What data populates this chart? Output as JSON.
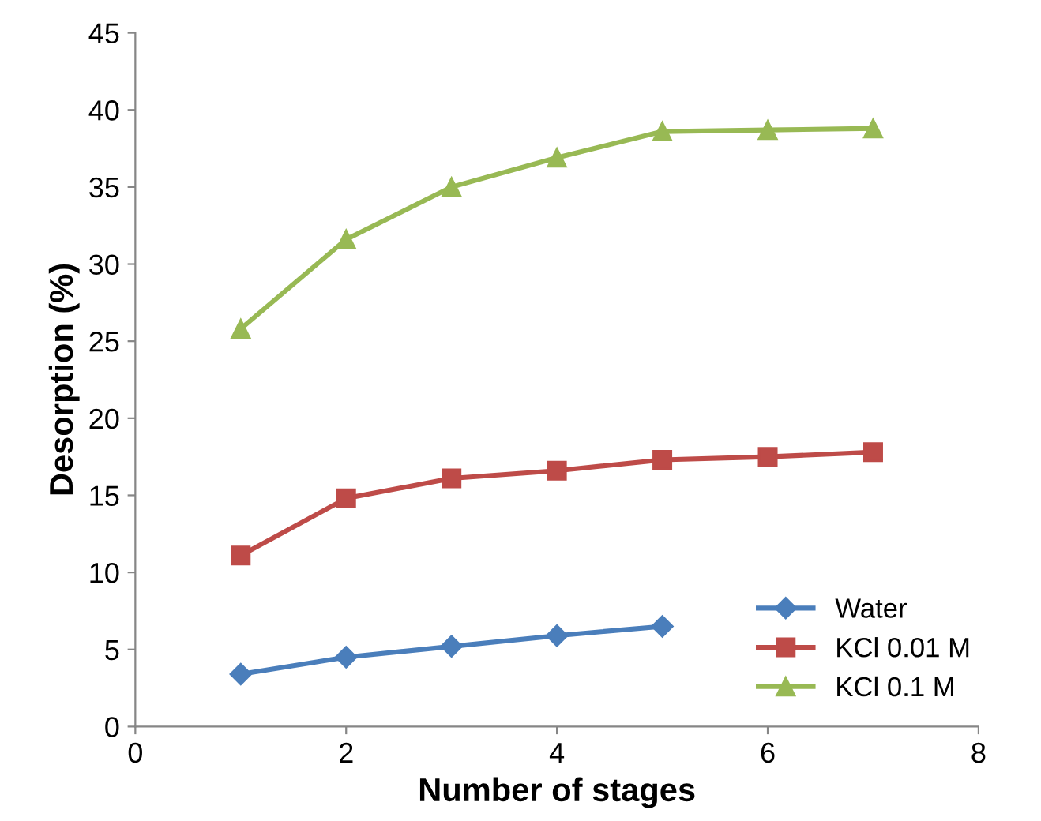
{
  "chart_data": {
    "type": "line",
    "xlabel": "Number of stages",
    "ylabel": "Desorption (%)",
    "xlim": [
      0,
      8
    ],
    "xticks": [
      0,
      2,
      4,
      6,
      8
    ],
    "ylim": [
      0,
      45
    ],
    "yticks": [
      0,
      5,
      10,
      15,
      20,
      25,
      30,
      35,
      40,
      45
    ],
    "grid": false,
    "legend": "bottom right",
    "line_style": "solid",
    "series": [
      {
        "name": "Water",
        "color": "#4a7ebb",
        "marker": "diamond",
        "x": [
          1,
          2,
          3,
          4,
          5
        ],
        "values": [
          3.4,
          4.5,
          5.2,
          5.9,
          6.5
        ]
      },
      {
        "name": "KCl 0.01 M",
        "color": "#be4b48",
        "marker": "square",
        "x": [
          1,
          2,
          3,
          4,
          5,
          6,
          7
        ],
        "values": [
          11.1,
          14.8,
          16.1,
          16.6,
          17.3,
          17.5,
          17.8
        ]
      },
      {
        "name": "KCl 0.1 M",
        "color": "#98b954",
        "marker": "triangle",
        "x": [
          1,
          2,
          3,
          4,
          5,
          6,
          7
        ],
        "values": [
          25.8,
          31.6,
          35.0,
          36.9,
          38.6,
          38.7,
          38.8
        ]
      }
    ]
  }
}
